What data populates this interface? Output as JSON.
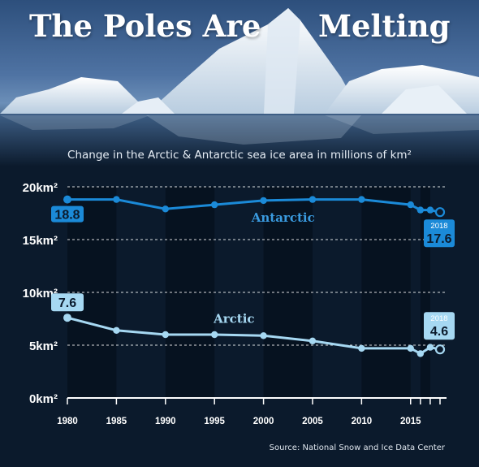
{
  "header": {
    "title_left": "The Poles Are",
    "title_right": "Melting",
    "subtitle": "Change in the Arctic & Antarctic sea ice area in millions of km²"
  },
  "source": "Source: National Snow and Ice Data Center",
  "colors": {
    "background": "#0b1a2c",
    "antarctic": "#1b8ad8",
    "arctic": "#a6d8f2",
    "antarctic_label": "#3a9be0",
    "arctic_label": "#a6d8f2",
    "axis": "#ffffff"
  },
  "chart_data": {
    "type": "line",
    "title": "Change in the Arctic & Antarctic sea ice area in millions of km²",
    "ylim": [
      0,
      20
    ],
    "xlim": [
      1980,
      2018
    ],
    "yticks": [
      {
        "value": 0,
        "label": "0km²"
      },
      {
        "value": 5,
        "label": "5km²"
      },
      {
        "value": 10,
        "label": "10km²"
      },
      {
        "value": 15,
        "label": "15km²"
      },
      {
        "value": 20,
        "label": "20km²"
      }
    ],
    "xticks": [
      1980,
      1985,
      1990,
      1995,
      2000,
      2005,
      2010,
      2015
    ],
    "shaded_bands": [
      [
        1980,
        1985
      ],
      [
        1990,
        1995
      ],
      [
        2000,
        2005
      ],
      [
        2010,
        2015
      ],
      [
        2016,
        2017
      ]
    ],
    "series": [
      {
        "name": "Antarctic",
        "x": [
          1980,
          1985,
          1990,
          1995,
          2000,
          2005,
          2010,
          2015,
          2016,
          2017,
          2018
        ],
        "values": [
          18.8,
          18.8,
          17.9,
          18.3,
          18.7,
          18.8,
          18.8,
          18.3,
          17.8,
          17.8,
          17.6
        ],
        "start_label": "18.8",
        "end_label": "17.6",
        "end_year_label": "2018"
      },
      {
        "name": "Arctic",
        "x": [
          1980,
          1985,
          1990,
          1995,
          2000,
          2005,
          2010,
          2015,
          2016,
          2017,
          2018
        ],
        "values": [
          7.6,
          6.4,
          6.0,
          6.0,
          5.9,
          5.4,
          4.7,
          4.7,
          4.2,
          4.8,
          4.6
        ],
        "start_label": "7.6",
        "end_label": "4.6",
        "end_year_label": "2018"
      }
    ]
  }
}
